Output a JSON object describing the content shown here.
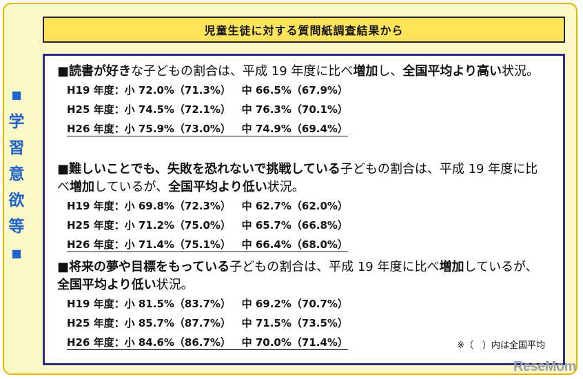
{
  "side_label": {
    "chars": [
      "学",
      "習",
      "意",
      "欲",
      "等"
    ],
    "marker": "■"
  },
  "title": "児童生徒に対する質問紙調査結果から",
  "sections": [
    {
      "heading": {
        "bullet": "■",
        "bold1": "読書が好き",
        "plain1": "な子どもの割合は、平成 19 年度に比べ",
        "bold2": "増加",
        "plain2": "し、",
        "bold3": "全国平均より高い",
        "plain3": "状況。"
      },
      "rows": [
        "H19 年度：小 72.0%（71.3%）   中 66.5%（67.9%）",
        "H25 年度：小 74.5%（72.1%）   中 76.3%（70.1%）",
        "H26 年度：小 75.9%（73.0%）   中 74.9%（69.4%）"
      ]
    },
    {
      "heading": {
        "bullet": "■",
        "bold1": "難しいことでも、失敗を恐れないで挑戦している",
        "plain1": "子どもの割合は、平成 19 年度に比べ",
        "bold2": "増加",
        "plain2": "しているが、",
        "bold3": "全国平均より低い",
        "plain3": "状況。"
      },
      "rows": [
        "H19 年度：小 69.8%（72.3%）   中 62.7%（62.0%）",
        "H25 年度：小 71.2%（75.0%）   中 65.7%（66.8%）",
        "H26 年度：小 71.4%（75.1%）   中 66.4%（68.0%）"
      ]
    },
    {
      "heading": {
        "bullet": "■",
        "bold1": "将来の夢や目標をもっている",
        "plain1": "子どもの割合は、平成 19 年度に比べ",
        "bold2": "増加",
        "plain2": "しているが、",
        "bold3": "全国平均より低い",
        "plain3": "状況。"
      },
      "rows": [
        "H19 年度：小 81.5%（83.7%）   中 69.2%（70.7%）",
        "H25 年度：小 85.7%（87.7%）   中 71.5%（73.5%）",
        "H26 年度：小 84.6%（86.7%）   中 70.0%（71.4%）"
      ]
    }
  ],
  "note": "※（　）内は全国平均",
  "logo": "ReseMom"
}
